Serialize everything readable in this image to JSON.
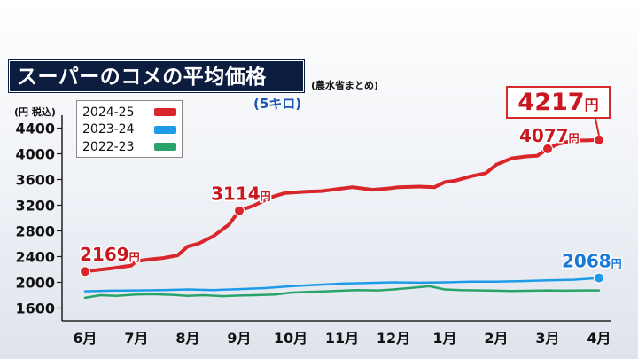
{
  "title": "スーパーのコメの平均価格",
  "source": "(農水省まとめ)",
  "subtitle": "(5キロ)",
  "unit_label": "(円 税込)",
  "colors": {
    "red": "#d9262b",
    "blue": "#1e9be8",
    "green": "#2aa36b",
    "label_red": "#c8171e",
    "label_blue": "#1a78d9"
  },
  "callout": {
    "value": "4217",
    "unit": "円"
  },
  "chart_data": {
    "type": "line",
    "x_labels": [
      "6月",
      "7月",
      "8月",
      "9月",
      "10月",
      "11月",
      "12月",
      "1月",
      "2月",
      "3月",
      "4月"
    ],
    "ylim": [
      1400,
      4600
    ],
    "yticks": [
      1600,
      2000,
      2400,
      2800,
      3200,
      3600,
      4000,
      4400
    ],
    "ylabel": "(円 税込)",
    "grid": false,
    "legend_position": "top-left",
    "series": [
      {
        "name": "2024-25",
        "color": "#d9262b",
        "x": [
          0,
          0.5,
          0.9,
          1.0,
          1.3,
          1.5,
          1.8,
          2.0,
          2.2,
          2.5,
          2.8,
          3.0,
          3.3,
          3.6,
          3.9,
          4.3,
          4.6,
          4.9,
          5.2,
          5.6,
          5.9,
          6.1,
          6.5,
          6.8,
          7.0,
          7.2,
          7.5,
          7.8,
          8.0,
          8.3,
          8.6,
          8.8,
          9.0,
          9.2,
          9.5,
          9.8,
          10.0
        ],
        "values": [
          2169,
          2215,
          2260,
          2330,
          2360,
          2375,
          2420,
          2560,
          2600,
          2720,
          2900,
          3114,
          3200,
          3320,
          3390,
          3410,
          3420,
          3450,
          3480,
          3440,
          3460,
          3480,
          3490,
          3480,
          3560,
          3580,
          3650,
          3700,
          3830,
          3930,
          3960,
          3970,
          4077,
          4150,
          4205,
          4210,
          4217
        ],
        "labels": [
          {
            "index": 0,
            "text": "2169",
            "unit": "円"
          },
          {
            "index": 11,
            "text": "3114",
            "unit": "円"
          },
          {
            "index": 32,
            "text": "4077",
            "unit": "円"
          }
        ]
      },
      {
        "name": "2023-24",
        "color": "#1e9be8",
        "x": [
          0,
          0.5,
          1.0,
          1.5,
          2.0,
          2.5,
          3.0,
          3.5,
          4.0,
          4.5,
          5.0,
          5.5,
          6.0,
          6.5,
          7.0,
          7.5,
          8.0,
          8.5,
          9.0,
          9.5,
          10.0
        ],
        "values": [
          1860,
          1870,
          1875,
          1880,
          1890,
          1880,
          1895,
          1910,
          1940,
          1960,
          1980,
          1990,
          2000,
          1995,
          2000,
          2010,
          2010,
          2020,
          2030,
          2040,
          2068
        ],
        "labels": [
          {
            "index": 20,
            "text": "2068",
            "unit": "円"
          }
        ]
      },
      {
        "name": "2022-23",
        "color": "#2aa36b",
        "x": [
          0,
          0.3,
          0.6,
          1.0,
          1.3,
          1.7,
          2.0,
          2.3,
          2.7,
          3.0,
          3.3,
          3.7,
          4.0,
          4.3,
          4.7,
          5.0,
          5.3,
          5.7,
          6.0,
          6.3,
          6.7,
          7.0,
          7.3,
          7.7,
          8.0,
          8.3,
          8.7,
          9.0,
          9.3,
          9.7,
          10.0
        ],
        "values": [
          1760,
          1800,
          1790,
          1810,
          1815,
          1805,
          1790,
          1800,
          1785,
          1795,
          1800,
          1810,
          1840,
          1850,
          1860,
          1870,
          1880,
          1875,
          1890,
          1910,
          1940,
          1890,
          1880,
          1875,
          1870,
          1865,
          1870,
          1875,
          1870,
          1875,
          1875
        ],
        "labels": []
      }
    ]
  }
}
